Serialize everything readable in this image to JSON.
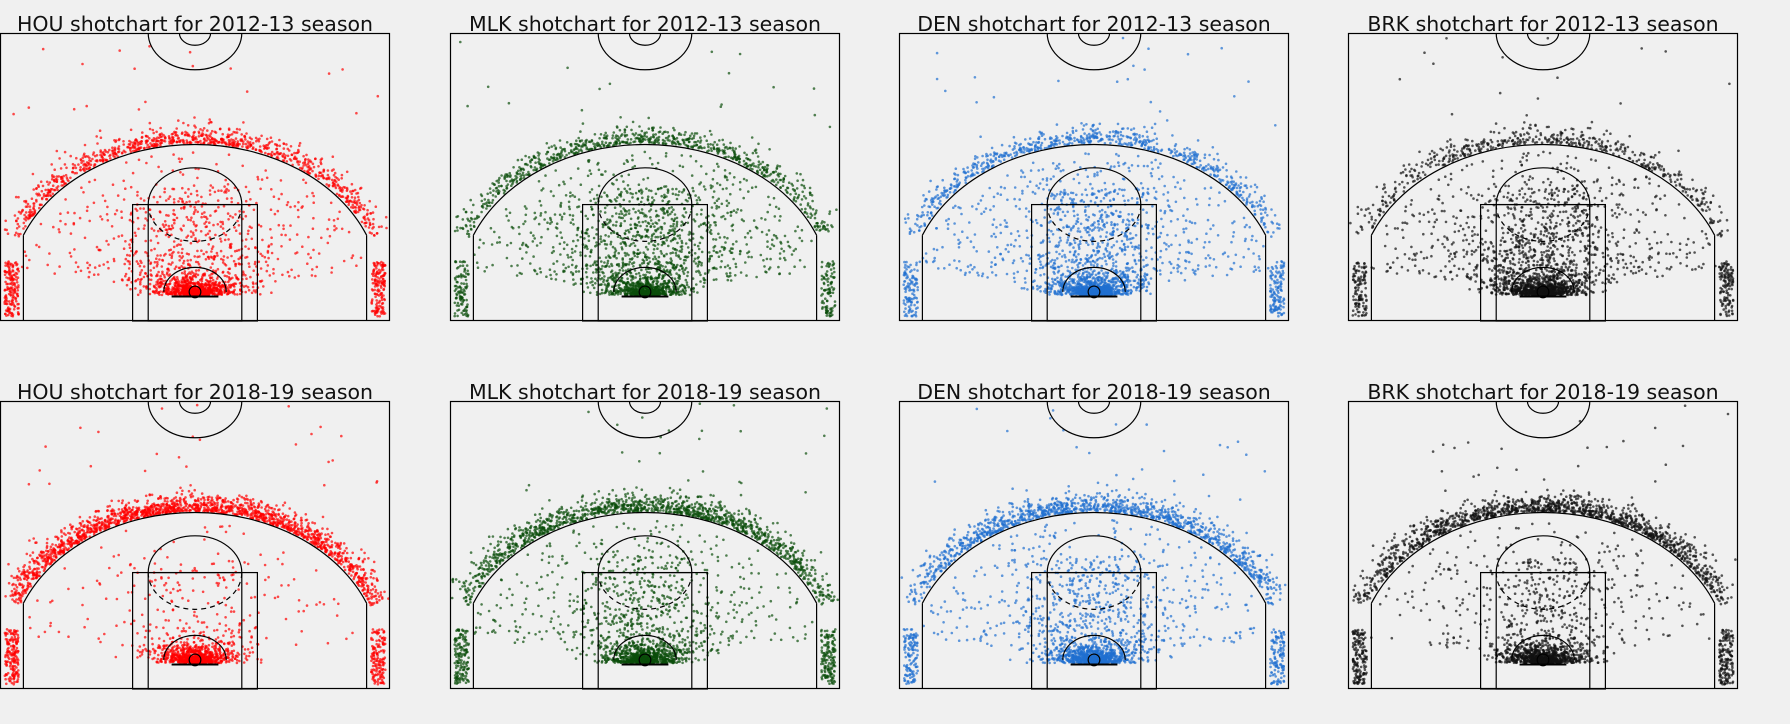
{
  "figure": {
    "background": "#f0f0f0",
    "chart_type": "scatter shot chart on half court",
    "grid": false,
    "axes_visible": false,
    "legend": "none"
  },
  "chart_data": [
    {
      "type": "scatter",
      "team": "HOU",
      "season": "2012-13",
      "title": "HOU shotchart for 2012-13 season",
      "color": "#ff0000",
      "point_count_estimate": 6500,
      "distribution": "heavy at rim, dense arc on 3pt line, corner 3s",
      "xlim": [
        -250,
        250
      ],
      "ylim": [
        -47.5,
        422.5
      ]
    },
    {
      "type": "scatter",
      "team": "MLK",
      "season": "2012-13",
      "title": "MLK shotchart for 2012-13 season",
      "color": "#0a4d0a",
      "point_count_estimate": 6500,
      "distribution": "heavy at rim, dense midrange, arc on 3pt line",
      "xlim": [
        -250,
        250
      ],
      "ylim": [
        -47.5,
        422.5
      ]
    },
    {
      "type": "scatter",
      "team": "DEN",
      "season": "2012-13",
      "title": "DEN shotchart for 2012-13 season",
      "color": "#1f6fd0",
      "point_count_estimate": 6500,
      "distribution": "heavy at rim, moderate midrange, arc on 3pt line",
      "xlim": [
        -250,
        250
      ],
      "ylim": [
        -47.5,
        422.5
      ]
    },
    {
      "type": "scatter",
      "team": "BRK",
      "season": "2012-13",
      "title": "BRK shotchart for 2012-13 season",
      "color": "#111111",
      "point_count_estimate": 6500,
      "distribution": "heavy in paint, dense midrange, arc on 3pt line",
      "xlim": [
        -250,
        250
      ],
      "ylim": [
        -47.5,
        422.5
      ]
    },
    {
      "type": "scatter",
      "team": "HOU",
      "season": "2018-19",
      "title": "HOU shotchart for 2018-19 season",
      "color": "#ff0000",
      "point_count_estimate": 7000,
      "distribution": "very heavy 3pt arc, rim, little midrange",
      "xlim": [
        -250,
        250
      ],
      "ylim": [
        -47.5,
        422.5
      ]
    },
    {
      "type": "scatter",
      "team": "MLK",
      "season": "2018-19",
      "title": "MLK shotchart for 2018-19 season",
      "color": "#0a4d0a",
      "point_count_estimate": 7000,
      "distribution": "heavy 3pt arc and rim, less midrange",
      "xlim": [
        -250,
        250
      ],
      "ylim": [
        -47.5,
        422.5
      ]
    },
    {
      "type": "scatter",
      "team": "DEN",
      "season": "2018-19",
      "title": "DEN shotchart for 2018-19 season",
      "color": "#1f6fd0",
      "point_count_estimate": 7000,
      "distribution": "heavy 3pt arc, rim, moderate midrange",
      "xlim": [
        -250,
        250
      ],
      "ylim": [
        -47.5,
        422.5
      ]
    },
    {
      "type": "scatter",
      "team": "BRK",
      "season": "2018-19",
      "title": "BRK shotchart for 2018-19 season",
      "color": "#111111",
      "point_count_estimate": 7000,
      "distribution": "heavy 3pt arc and rim, sparse midrange",
      "xlim": [
        -250,
        250
      ],
      "ylim": [
        -47.5,
        422.5
      ]
    }
  ]
}
